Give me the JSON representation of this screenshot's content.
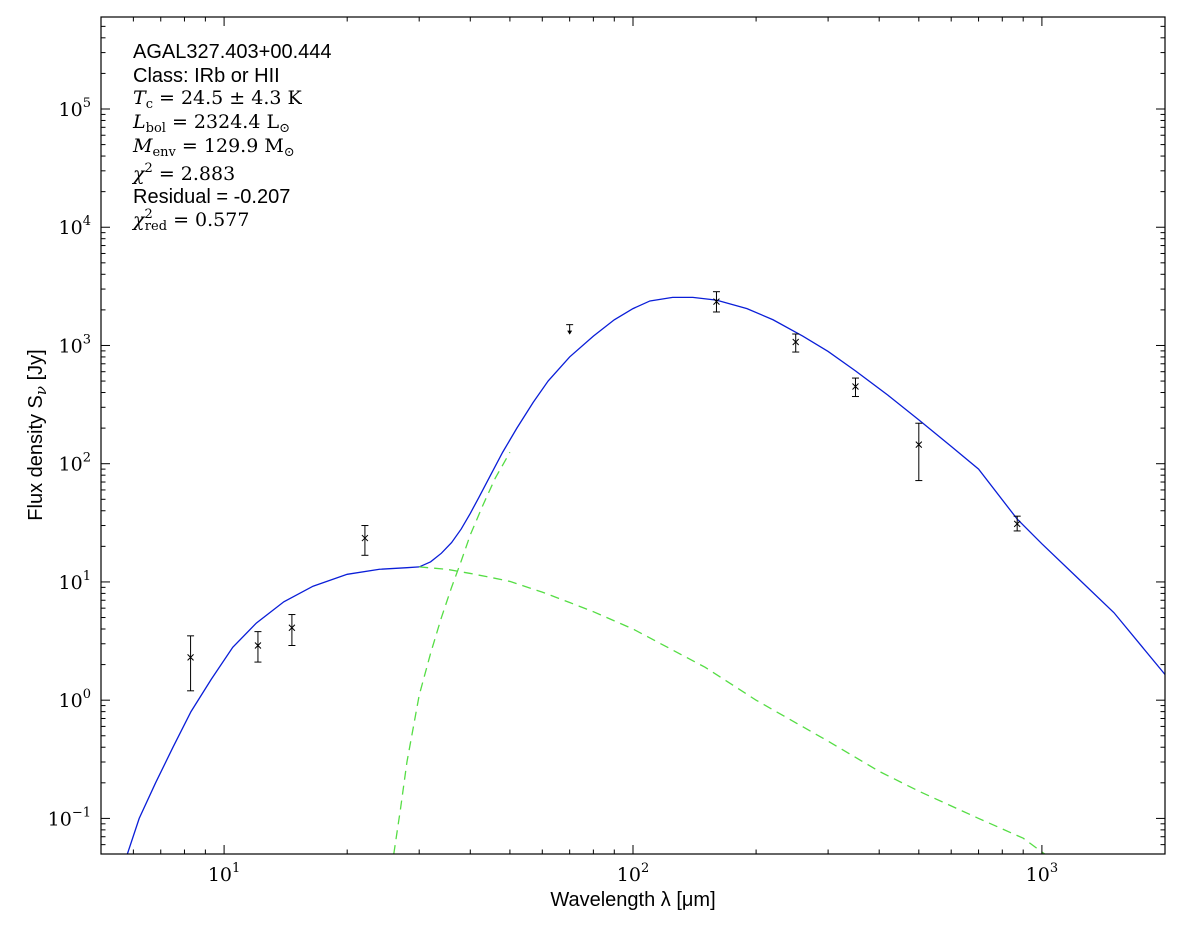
{
  "chart_data": {
    "type": "scatter",
    "xlabel": "Wavelength λ [μm]",
    "ylabel": "Flux density S",
    "ylabel_sub": "ν",
    "ylabel_unit": " [Jy]",
    "xscale": "log",
    "yscale": "log",
    "xlim": [
      5,
      2000
    ],
    "ylim": [
      0.05,
      600000
    ],
    "grid": false,
    "x_ticks": [
      {
        "value": 10,
        "label_base": "10",
        "label_exp": "1"
      },
      {
        "value": 100,
        "label_base": "10",
        "label_exp": "2"
      },
      {
        "value": 1000,
        "label_base": "10",
        "label_exp": "3"
      }
    ],
    "y_ticks": [
      {
        "value": 0.1,
        "label_base": "10",
        "label_exp": "−1"
      },
      {
        "value": 1,
        "label_base": "10",
        "label_exp": "0"
      },
      {
        "value": 10,
        "label_base": "10",
        "label_exp": "1"
      },
      {
        "value": 100,
        "label_base": "10",
        "label_exp": "2"
      },
      {
        "value": 1000,
        "label_base": "10",
        "label_exp": "3"
      },
      {
        "value": 10000,
        "label_base": "10",
        "label_exp": "4"
      },
      {
        "value": 100000,
        "label_base": "10",
        "label_exp": "5"
      }
    ],
    "annotations": {
      "source": "AGAL327.403+00.444",
      "class": "Class: IRb or HII",
      "tc": {
        "symbol": "T",
        "sub": "c",
        "value": " = 24.5 ± 4.3 K"
      },
      "lbol": {
        "symbol": "L",
        "sub": "bol",
        "value": " = 2324.4 L",
        "unit_sub": "⊙"
      },
      "menv": {
        "symbol": "M",
        "sub": "env",
        "value": " = 129.9 M",
        "unit_sub": "⊙"
      },
      "chi2": {
        "symbol": "χ",
        "sup": "2",
        "value": " = 2.883"
      },
      "residual": "Residual = -0.207",
      "chi2red": {
        "symbol": "χ",
        "sup": "2",
        "sub": "red",
        "value": " = 0.577"
      }
    },
    "points": [
      {
        "x": 8.28,
        "y": 2.3,
        "ylow": 1.2,
        "yhigh": 3.5
      },
      {
        "x": 12.1,
        "y": 2.9,
        "ylow": 2.1,
        "yhigh": 3.8
      },
      {
        "x": 14.65,
        "y": 4.1,
        "ylow": 2.9,
        "yhigh": 5.3
      },
      {
        "x": 22.1,
        "y": 23.5,
        "ylow": 16.8,
        "yhigh": 30.0
      },
      {
        "x": 160,
        "y": 2350,
        "ylow": 1920,
        "yhigh": 2850
      },
      {
        "x": 250,
        "y": 1070,
        "ylow": 880,
        "yhigh": 1250
      },
      {
        "x": 350,
        "y": 450,
        "ylow": 370,
        "yhigh": 530
      },
      {
        "x": 500,
        "y": 145,
        "ylow": 72,
        "yhigh": 220
      },
      {
        "x": 870,
        "y": 31,
        "ylow": 27,
        "yhigh": 36
      }
    ],
    "upper_limits": [
      {
        "x": 70,
        "y": 1500
      }
    ],
    "series": [
      {
        "style": "solid",
        "color": "#0a1ed8",
        "points": [
          [
            5.8,
            0.05
          ],
          [
            6.2,
            0.1
          ],
          [
            6.8,
            0.2
          ],
          [
            7.5,
            0.4
          ],
          [
            8.3,
            0.8
          ],
          [
            9.3,
            1.5
          ],
          [
            10.5,
            2.8
          ],
          [
            12,
            4.5
          ],
          [
            14,
            6.8
          ],
          [
            16.5,
            9.2
          ],
          [
            20,
            11.6
          ],
          [
            24,
            12.8
          ],
          [
            28,
            13.2
          ],
          [
            30,
            13.4
          ],
          [
            32,
            14.8
          ],
          [
            34,
            17.5
          ],
          [
            36,
            21.5
          ],
          [
            38,
            28
          ],
          [
            40,
            38
          ],
          [
            42,
            52
          ],
          [
            45,
            82
          ],
          [
            48,
            125
          ],
          [
            52,
            200
          ],
          [
            57,
            330
          ],
          [
            62,
            500
          ],
          [
            70,
            800
          ],
          [
            80,
            1200
          ],
          [
            90,
            1650
          ],
          [
            100,
            2050
          ],
          [
            110,
            2380
          ],
          [
            125,
            2550
          ],
          [
            140,
            2550
          ],
          [
            160,
            2420
          ],
          [
            190,
            2050
          ],
          [
            220,
            1650
          ],
          [
            260,
            1200
          ],
          [
            300,
            890
          ],
          [
            350,
            610
          ],
          [
            420,
            380
          ],
          [
            500,
            235
          ],
          [
            600,
            140
          ],
          [
            700,
            90
          ],
          [
            870,
            34
          ],
          [
            1000,
            21
          ],
          [
            1200,
            11.5
          ],
          [
            1500,
            5.5
          ],
          [
            2000,
            1.65
          ]
        ]
      },
      {
        "style": "dashed",
        "color": "#55dd44",
        "points": [
          [
            30,
            13.4
          ],
          [
            35,
            12.8
          ],
          [
            40,
            11.8
          ],
          [
            45,
            10.9
          ],
          [
            50,
            10.1
          ],
          [
            60,
            8.2
          ],
          [
            70,
            6.7
          ],
          [
            80,
            5.6
          ],
          [
            100,
            4
          ],
          [
            150,
            1.9
          ],
          [
            200,
            1.0
          ],
          [
            300,
            0.45
          ],
          [
            400,
            0.25
          ],
          [
            500,
            0.17
          ],
          [
            700,
            0.1
          ],
          [
            900,
            0.068
          ],
          [
            1000,
            0.052
          ],
          [
            1060,
            0.045
          ]
        ]
      },
      {
        "style": "dashed",
        "color": "#55dd44",
        "points": [
          [
            26,
            0.05
          ],
          [
            27,
            0.12
          ],
          [
            28,
            0.3
          ],
          [
            30,
            1.1
          ],
          [
            32,
            2.5
          ],
          [
            34,
            5.0
          ],
          [
            36,
            9.0
          ],
          [
            38,
            15
          ],
          [
            40,
            25
          ],
          [
            43,
            45
          ],
          [
            46,
            75
          ],
          [
            50,
            125
          ]
        ]
      }
    ]
  }
}
